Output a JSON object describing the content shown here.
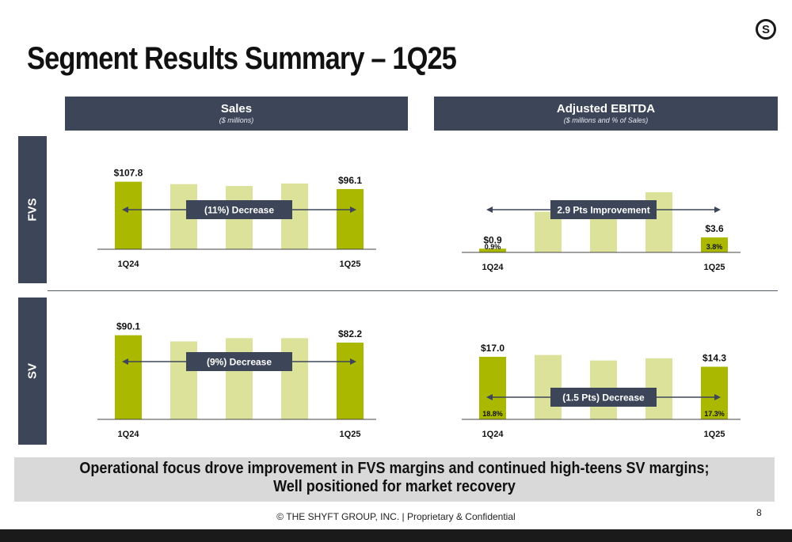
{
  "slide": {
    "title": "Segment Results Summary – 1Q25",
    "logo_letter": "S",
    "page_number": "8",
    "footer": "© THE SHYFT GROUP, INC. | Proprietary & Confidential",
    "banner_line1": "Operational focus drove improvement in FVS margins and continued high-teens SV margins;",
    "banner_line2": "Well positioned for market recovery"
  },
  "columns": [
    {
      "title": "Sales",
      "subtitle": "($ millions)"
    },
    {
      "title": "Adjusted EBITDA",
      "subtitle": "($ millions and % of Sales)"
    }
  ],
  "rows": [
    {
      "label": "FVS"
    },
    {
      "label": "SV"
    }
  ],
  "colors": {
    "header_bg": "#3d4658",
    "bar_highlight": "#aab800",
    "bar_light": "#dde29a",
    "arrow": "#3d4658",
    "callout_bg": "#3d4658"
  },
  "chart_data": [
    {
      "id": "fvs-sales",
      "type": "bar",
      "categories": [
        "1Q24",
        "",
        "",
        "",
        "1Q25"
      ],
      "values": [
        107.8,
        104,
        101,
        105,
        96.1
      ],
      "highlight": [
        true,
        false,
        false,
        false,
        true
      ],
      "value_labels": [
        "$107.8",
        "",
        "",
        "",
        "$96.1"
      ],
      "pct_labels": [
        "",
        "",
        "",
        "",
        ""
      ],
      "callout": "(11%) Decrease",
      "ylim": [
        0,
        120
      ]
    },
    {
      "id": "fvs-ebitda",
      "type": "bar",
      "categories": [
        "1Q24",
        "",
        "",
        "",
        "1Q25"
      ],
      "values": [
        0.9,
        9.8,
        10.8,
        14.5,
        3.6
      ],
      "highlight": [
        true,
        false,
        false,
        false,
        true
      ],
      "value_labels": [
        "$0.9",
        "",
        "",
        "",
        "$3.6"
      ],
      "pct_labels": [
        "0.9%",
        "",
        "",
        "",
        "3.8%"
      ],
      "callout": "2.9 Pts Improvement",
      "ylim": [
        0,
        16
      ]
    },
    {
      "id": "sv-sales",
      "type": "bar",
      "categories": [
        "1Q24",
        "",
        "",
        "",
        "1Q25"
      ],
      "values": [
        90.1,
        83.5,
        87,
        87,
        82.2
      ],
      "highlight": [
        true,
        false,
        false,
        false,
        true
      ],
      "value_labels": [
        "$90.1",
        "",
        "",
        "",
        "$82.2"
      ],
      "pct_labels": [
        "",
        "",
        "",
        "",
        ""
      ],
      "callout": "(9%) Decrease",
      "ylim": [
        0,
        100
      ]
    },
    {
      "id": "sv-ebitda",
      "type": "bar",
      "categories": [
        "1Q24",
        "",
        "",
        "",
        "1Q25"
      ],
      "values": [
        17.0,
        17.5,
        16.0,
        16.6,
        14.3
      ],
      "highlight": [
        true,
        false,
        false,
        false,
        true
      ],
      "value_labels": [
        "$17.0",
        "",
        "",
        "",
        "$14.3"
      ],
      "pct_labels": [
        "18.8%",
        "",
        "",
        "",
        "17.3%"
      ],
      "callout": "(1.5 Pts) Decrease",
      "ylim": [
        0,
        20
      ]
    }
  ]
}
